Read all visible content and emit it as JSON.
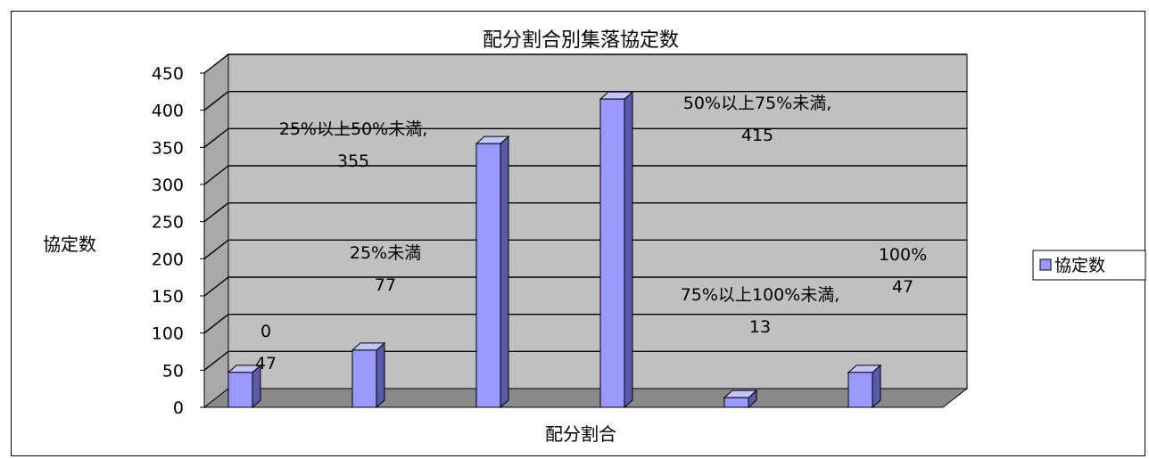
{
  "chart_data": {
    "type": "bar",
    "title": "配分割合別集落協定数",
    "xlabel": "配分割合",
    "ylabel": "協定数",
    "ylim": [
      0,
      450
    ],
    "yticks": [
      0,
      50,
      100,
      150,
      200,
      250,
      300,
      350,
      400,
      450
    ],
    "grid": true,
    "legend_position": "right",
    "categories": [
      "0",
      "25%未満",
      "25%以上50%未満",
      "50%以上75%未満",
      "75%以上100%未満",
      "100%"
    ],
    "series": [
      {
        "name": "協定数",
        "values": [
          47,
          77,
          355,
          415,
          13,
          47
        ]
      }
    ],
    "data_labels": [
      {
        "category": "0",
        "value": "47"
      },
      {
        "category": "25%未満",
        "value": "77"
      },
      {
        "category": "25%以上50%未満,",
        "value": "355"
      },
      {
        "category": "50%以上75%未満,",
        "value": "415"
      },
      {
        "category": "75%以上100%未満,",
        "value": "13"
      },
      {
        "category": "100%",
        "value": "47"
      }
    ],
    "colors": {
      "bar_front": "#9999ff",
      "bar_side": "#5a5aa8",
      "bar_top": "#c4c4ff",
      "plot_back": "#c0c0c0",
      "plot_wall": "#a9a9a9",
      "plot_floor": "#8a8a8a"
    }
  }
}
